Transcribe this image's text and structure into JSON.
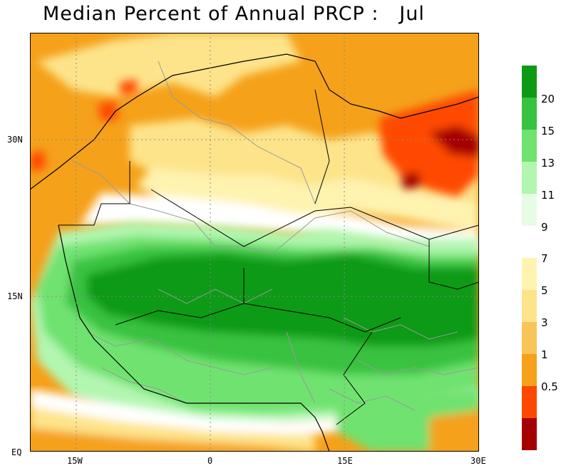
{
  "title": "Median Percent of Annual PRCP :   Jul",
  "map": {
    "lat_labels": [
      "30N",
      "15N",
      "EQ"
    ],
    "lon_labels": [
      "15W",
      "0",
      "15E",
      "30E"
    ]
  },
  "legend": {
    "upper": [
      {
        "label": "20",
        "color": "#0f9a16"
      },
      {
        "label": "15",
        "color": "#37c240"
      },
      {
        "label": "13",
        "color": "#6fe26f"
      },
      {
        "label": "11",
        "color": "#b2f6b0"
      },
      {
        "label": "9",
        "color": "#e6fce4"
      }
    ],
    "lower": [
      {
        "label": "7",
        "color": "#fff3b0"
      },
      {
        "label": "5",
        "color": "#fde48a"
      },
      {
        "label": "3",
        "color": "#f9c458"
      },
      {
        "label": "1",
        "color": "#f5a11a"
      },
      {
        "label": "0.5",
        "color": "#ff4800"
      }
    ],
    "bottom_color": "#a50000"
  }
}
